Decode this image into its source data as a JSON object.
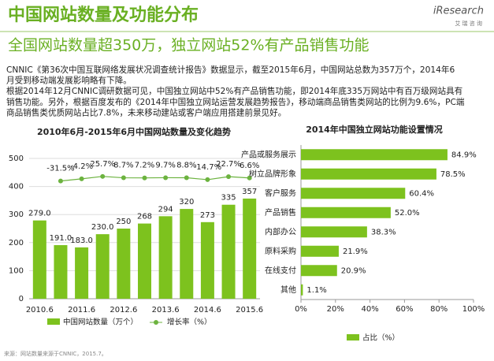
{
  "title": "中国网站数量及功能分布",
  "subtitle": "全国网站数量超350万，独立网站52%有产品销售功能",
  "logo": {
    "brand": "iResearch",
    "sub": "艾 瑞 咨 询"
  },
  "body": [
    "CNNIC《第36次中国互联网络发展状况调查统计报告》数据显示，截至2015年6月，中国网站总数为357万个，2014年6",
    "月受到移动端发展影响略有下降。",
    "根据2014年12月CNNIC调研数据可见，中国独立网站中52%有产品销售功能，即2014年底335万网站中有百万级网站具有",
    "销售功能。另外，根据百度发布的《2014年中国独立网站运营发展趋势报告》，移动端商品销售类网站的比例为9.6%，PC端",
    "商品销售类优质网站占比7.8%，未来移动建站或客户端应用搭建前景见好。"
  ],
  "source": "来源：网站数量来源于CNNIC，2015.7。",
  "chart_data": [
    {
      "type": "bar-line",
      "title": "2010年6月-2015年6月中国网站数量及变化趋势",
      "categories": [
        "2010.6",
        null,
        "2011.6",
        null,
        "2012.6",
        null,
        "2013.6",
        null,
        "2014.6",
        null,
        "2015.6"
      ],
      "series": [
        {
          "name": "中国网站数量（万个）",
          "color": "#7dc21e",
          "values": [
            279.0,
            191.0,
            183.0,
            230.0,
            250,
            268,
            294,
            320,
            273,
            335,
            357
          ],
          "value_labels": [
            "279.0",
            "191.0",
            "183.0",
            "230.0",
            "250",
            "268",
            "294",
            "320",
            "273",
            "335",
            "357"
          ]
        },
        {
          "name": "增长率（%）",
          "color": "#6cb33f",
          "axis": "y2",
          "values": [
            null,
            -31.5,
            -4.2,
            25.7,
            8.7,
            7.2,
            9.7,
            8.8,
            -14.7,
            22.7,
            6.6
          ],
          "value_labels": [
            null,
            "-31.5%",
            "-4.2%",
            "25.7%",
            "8.7%",
            "7.2%",
            "9.7%",
            "8.8%",
            "-14.7%",
            "22.7%",
            "6.6%"
          ]
        }
      ],
      "ylim": [
        0,
        500
      ],
      "yticks": [
        0,
        100,
        200,
        300,
        400,
        500
      ],
      "y2lim": [
        -1500,
        250
      ],
      "grid": true
    },
    {
      "type": "hbar",
      "title": "2014年中国独立网站功能设置情况",
      "categories": [
        "产品或服务展示",
        "树立品牌形象",
        "客户服务",
        "产品销售",
        "内部办公",
        "原料采购",
        "在线支付",
        "其他"
      ],
      "series": [
        {
          "name": "占比（%）",
          "color": "#7dc21e",
          "values": [
            84.9,
            78.5,
            60.4,
            52.0,
            38.3,
            21.9,
            20.9,
            1.1
          ],
          "value_labels": [
            "84.9%",
            "78.5%",
            "60.4%",
            "52.0%",
            "38.3%",
            "21.9%",
            "20.9%",
            "1.1%"
          ]
        }
      ],
      "xlim": [
        0,
        100
      ],
      "xticks": [
        {
          "value": 0,
          "label": "0%"
        },
        {
          "value": 20,
          "label": "20%"
        },
        {
          "value": 40,
          "label": "40%"
        },
        {
          "value": 60,
          "label": "60%"
        },
        {
          "value": 80,
          "label": "80%"
        },
        {
          "value": 100,
          "label": "100%"
        }
      ]
    }
  ]
}
